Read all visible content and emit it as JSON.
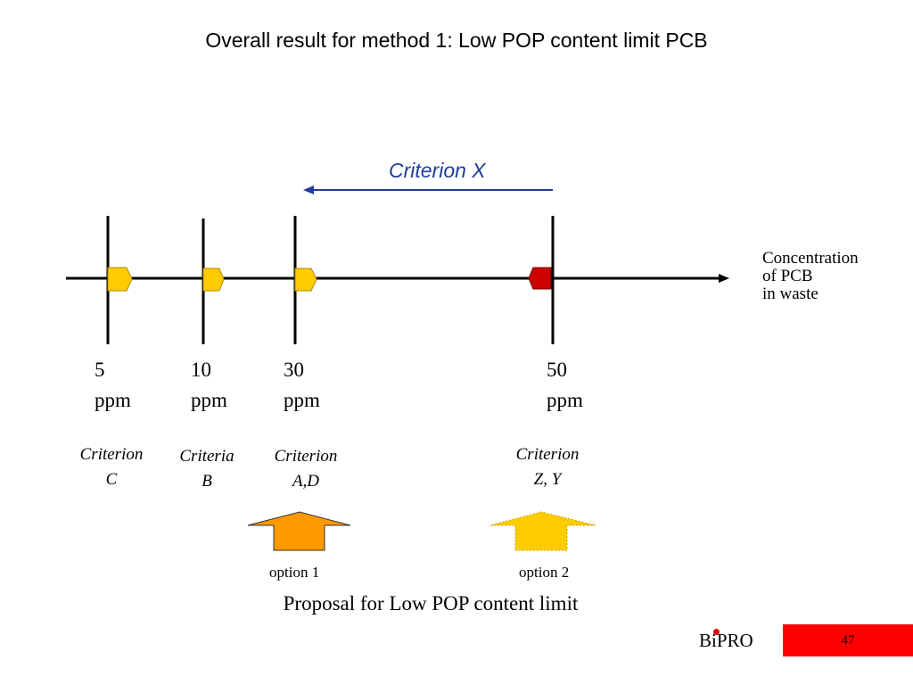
{
  "title": "Overall result for method 1: Low POP content limit PCB",
  "criterion_x": "Criterion X",
  "axis_label": [
    "Concentration",
    "of PCB",
    "in waste"
  ],
  "ticks": [
    {
      "value": "5",
      "unit": "ppm",
      "marker_color": "#ffcc00"
    },
    {
      "value": "10",
      "unit": "ppm",
      "marker_color": "#ffcc00"
    },
    {
      "value": "30",
      "unit": "ppm",
      "marker_color": "#ffcc00"
    },
    {
      "value": "50",
      "unit": "ppm",
      "marker_color": "#cc0000"
    }
  ],
  "criteria": [
    {
      "line1": "Criterion",
      "line2": "C"
    },
    {
      "line1": "Criteria",
      "line2": "B"
    },
    {
      "line1": "Criterion",
      "line2": "A,D"
    },
    {
      "line1": "Criterion",
      "line2": "Z, Y"
    }
  ],
  "options": [
    {
      "label": "option 1",
      "color": "#ff9900"
    },
    {
      "label": "option 2",
      "color": "#ffcc00"
    }
  ],
  "proposal": "Proposal for Low POP content limit",
  "brand": "BiPRO",
  "page_number": "47",
  "colors": {
    "accent_blue": "#1f3d9c",
    "badge_red": "#ff0000"
  }
}
